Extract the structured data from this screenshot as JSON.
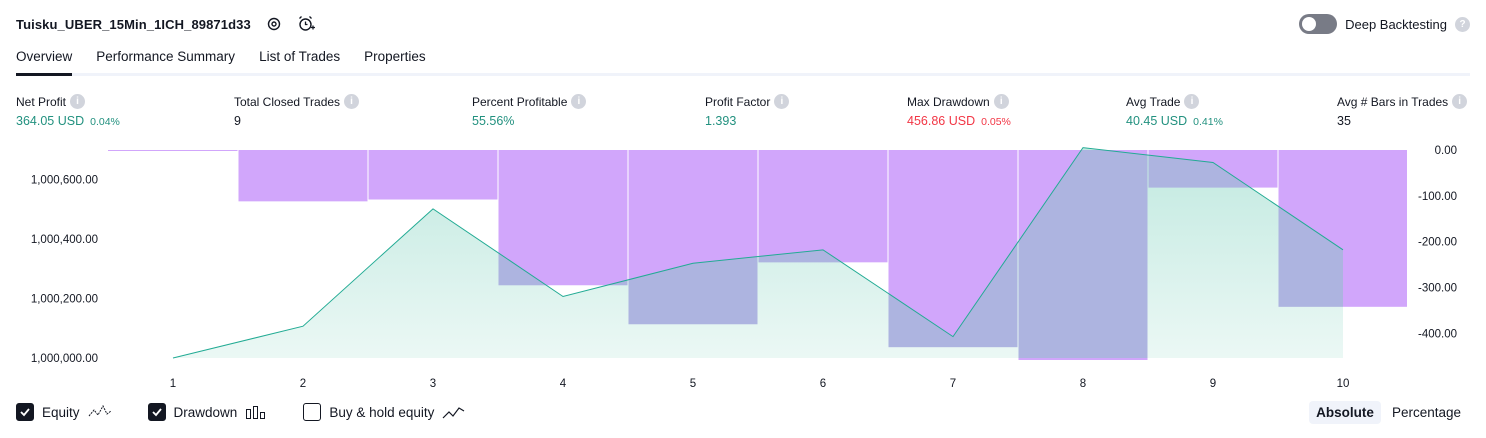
{
  "header": {
    "strategy_title": "Tuisku_UBER_15Min_1ICH_89871d33",
    "deep_backtesting_label": "Deep Backtesting",
    "deep_backtesting_enabled": false
  },
  "tabs": [
    {
      "label": "Overview",
      "active": true
    },
    {
      "label": "Performance Summary",
      "active": false
    },
    {
      "label": "List of Trades",
      "active": false
    },
    {
      "label": "Properties",
      "active": false
    }
  ],
  "stats": {
    "net_profit": {
      "label": "Net Profit",
      "value": "364.05 USD",
      "pct": "0.04%"
    },
    "total_closed_trades": {
      "label": "Total Closed Trades",
      "value": "9"
    },
    "percent_profitable": {
      "label": "Percent Profitable",
      "value": "55.56%"
    },
    "profit_factor": {
      "label": "Profit Factor",
      "value": "1.393"
    },
    "max_drawdown": {
      "label": "Max Drawdown",
      "value": "456.86 USD",
      "pct": "0.05%"
    },
    "avg_trade": {
      "label": "Avg Trade",
      "value": "40.45 USD",
      "pct": "0.41%"
    },
    "avg_bars": {
      "label": "Avg # Bars in Trades",
      "value": "35"
    }
  },
  "chart_data": {
    "type": "line",
    "x": [
      1,
      2,
      3,
      4,
      5,
      6,
      7,
      8,
      9,
      10
    ],
    "equity": [
      1000000,
      1000107,
      1000502,
      1000207,
      1000319,
      1000364,
      1000072,
      1000708,
      1000658,
      1000364
    ],
    "drawdown": [
      0,
      -112,
      -108,
      -295,
      -380,
      -245,
      -430,
      -458,
      -82,
      -342
    ],
    "left_axis": {
      "ticks": [
        "1,000,000.00",
        "1,000,200.00",
        "1,000,400.00",
        "1,000,600.00"
      ],
      "tick_values": [
        1000000,
        1000200,
        1000400,
        1000600
      ],
      "range": [
        1000000,
        1000700
      ]
    },
    "right_axis": {
      "ticks": [
        "0.00",
        "-100.00",
        "-200.00",
        "-300.00",
        "-400.00"
      ],
      "tick_values": [
        0,
        -100,
        -200,
        -300,
        -400
      ],
      "range": [
        -458,
        0
      ]
    },
    "x_ticks": [
      "1",
      "2",
      "3",
      "4",
      "5",
      "6",
      "7",
      "8",
      "9",
      "10"
    ],
    "colors": {
      "equity_line": "#22ab94",
      "equity_fill": "#cdeee7",
      "drawdown_bar": "#d1a6fb",
      "drawdown_overlap": "#adb4e0"
    }
  },
  "legend": {
    "equity": {
      "label": "Equity",
      "checked": true
    },
    "drawdown": {
      "label": "Drawdown",
      "checked": true
    },
    "buy_hold": {
      "label": "Buy & hold equity",
      "checked": false
    }
  },
  "modes": {
    "absolute": "Absolute",
    "percentage": "Percentage"
  }
}
